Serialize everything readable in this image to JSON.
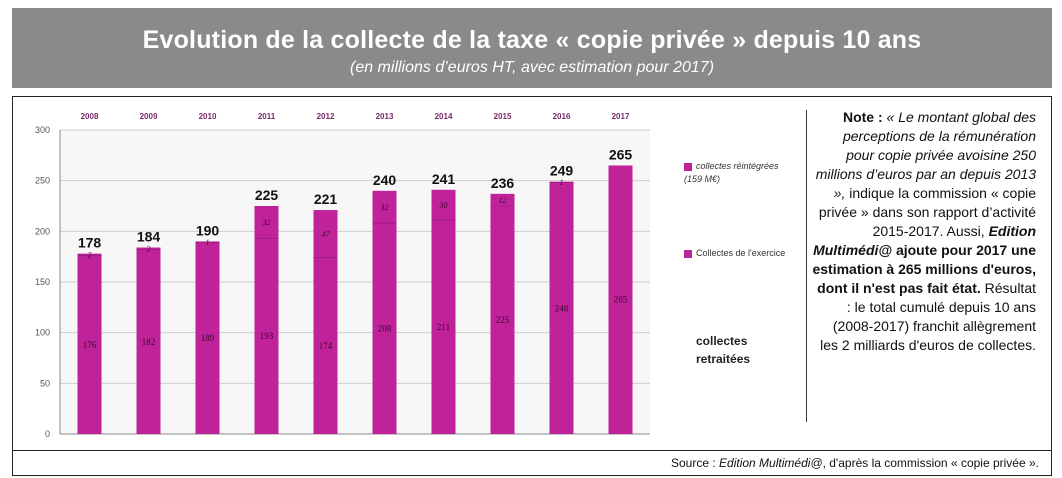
{
  "header": {
    "title": "Evolution de la collecte de la taxe « copie privée » depuis 10 ans",
    "subtitle": "(en millions d’euros HT, avec estimation pour 2017)"
  },
  "chart_data": {
    "type": "bar",
    "stacked": true,
    "categories": [
      "2008",
      "2009",
      "2010",
      "2011",
      "2012",
      "2013",
      "2014",
      "2015",
      "2016",
      "2017"
    ],
    "totals": [
      178,
      184,
      190,
      225,
      221,
      240,
      241,
      236,
      249,
      265
    ],
    "total_labels": [
      "178",
      "184",
      "190",
      "225",
      "221",
      "240",
      "241",
      "236",
      "249",
      "265"
    ],
    "series": [
      {
        "name": "Collectes de l'exercice",
        "values": [
          176,
          182,
          189,
          193,
          174,
          208,
          211,
          225,
          248,
          265
        ],
        "labels": [
          "176",
          "182",
          "189",
          "193",
          "174",
          "208",
          "211",
          "225",
          "248",
          "265"
        ]
      },
      {
        "name": "collectes réintégrées (159 M€)",
        "values": [
          2,
          2,
          1,
          32,
          47,
          32,
          30,
          12,
          1,
          0
        ],
        "labels": [
          "2",
          "2",
          "1",
          "32",
          "47",
          "32",
          "30",
          "12",
          "1",
          ""
        ]
      }
    ],
    "ylim": [
      0,
      300
    ],
    "yticks": [
      "0",
      "50",
      "100",
      "150",
      "200",
      "250",
      "300"
    ],
    "grid": true,
    "legend_placement": "right",
    "colors": {
      "bar": "#c0229a",
      "grid": "#cfcfcf",
      "year_label": "#7a2a6a"
    }
  },
  "legend": {
    "item1_label": "collectes réintégrées",
    "item1_sub": "(159 M€)",
    "item2_label": "Collectes de l'exercice",
    "annotation_line1": "collectes",
    "annotation_line2": "retraitées"
  },
  "note": {
    "label": "Note :",
    "quote": "« Le montant global des perceptions de la rémunération pour copie privée avoisine 250 millions d’euros par an depuis 2013 »,",
    "text1": "indique la commission « copie privée » dans son rapport d’activité 2015-2017.",
    "text2": "Aussi,",
    "brand": "Edition Multimédi@",
    "bold_text": "ajoute pour 2017 une estimation à 265 millions d'euros, dont il n'est pas fait état.",
    "text3": "Résultat : le total cumulé depuis 10 ans (2008-2017) franchit allègrement les 2 milliards d'euros de collectes."
  },
  "source": {
    "prefix": "Source :",
    "brand": "Edition Multimédi@",
    "suffix": ", d'après la commission « copie privée »."
  }
}
